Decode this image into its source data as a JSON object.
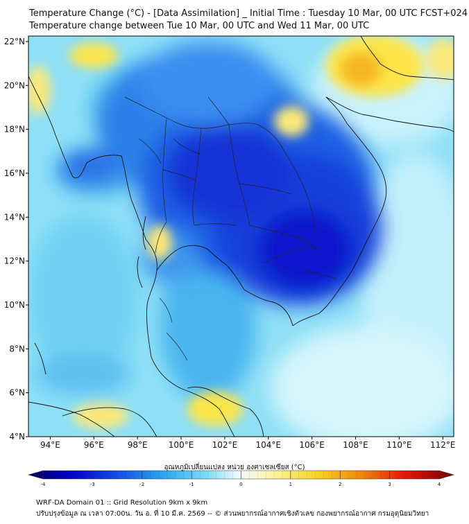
{
  "title_line1": "Temperature Change (°C) - [Data Assimilation] _ Initial Time : Tuesday 10 Mar, 00 UTC FCST+024",
  "title_line2": "Temperature change between Tue 10 Mar, 00 UTC and Wed 11 Mar, 00 UTC",
  "lat_labels": [
    "22°N",
    "20°N",
    "18°N",
    "16°N",
    "14°N",
    "12°N",
    "10°N",
    "8°N",
    "6°N",
    "4°N"
  ],
  "lat_values": [
    22,
    20,
    18,
    16,
    14,
    12,
    10,
    8,
    6,
    4
  ],
  "lon_labels": [
    "94°E",
    "96°E",
    "98°E",
    "100°E",
    "102°E",
    "104°E",
    "106°E",
    "108°E",
    "110°E",
    "112°E"
  ],
  "lon_values": [
    94,
    96,
    98,
    100,
    102,
    104,
    106,
    108,
    110,
    112
  ],
  "extent": {
    "lon_min": 93,
    "lon_max": 112.5,
    "lat_min": 4,
    "lat_max": 22.25
  },
  "colorbar": {
    "label": "อุณหภูมิเปลี่ยนแปลง หน่วย องศาเซลเซียส (°C)",
    "ticks": [
      "-4",
      "-3",
      "-2",
      "-1",
      "0",
      "1",
      "2",
      "3",
      "4"
    ],
    "min": -4,
    "max": 4
  },
  "footer_line1": "WRF-DA Domain 01 :: Grid Resolution 9km x 9km",
  "footer_line2": "ปรับปรุงข้อมูล ณ เวลา 07:00น. วัน อ. ที่ 10 มี.ค. 2569 -- © ส่วนพยากรณ์อากาศเชิงตัวเลข กองพยากรณ์อากาศ กรมอุตุนิยมวิทยา"
}
